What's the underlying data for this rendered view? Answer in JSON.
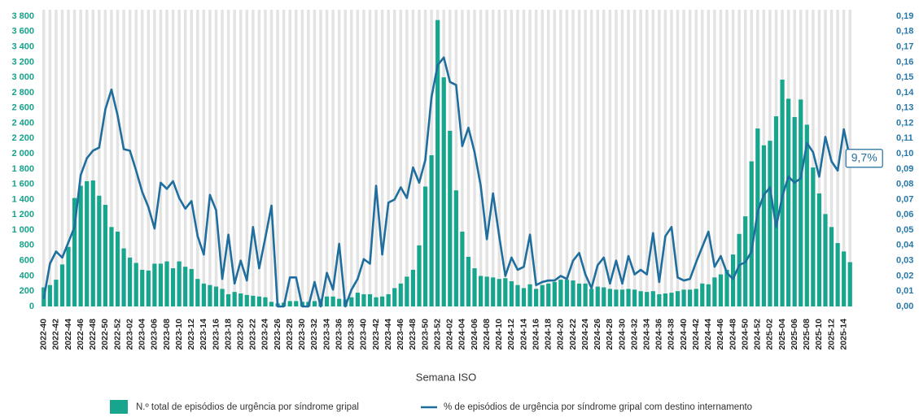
{
  "chart_data": {
    "type": "bar_line",
    "x_label": "Semana ISO",
    "categories": [
      "2022-40",
      null,
      "2022-42",
      null,
      "2022-44",
      null,
      "2022-46",
      null,
      "2022-48",
      null,
      "2022-50",
      null,
      "2022-52",
      null,
      "2023-02",
      null,
      "2023-04",
      null,
      "2023-06",
      null,
      "2023-08",
      null,
      "2023-10",
      null,
      "2023-12",
      null,
      "2023-14",
      null,
      "2023-16",
      null,
      "2023-18",
      null,
      "2023-20",
      null,
      "2023-22",
      null,
      "2023-24",
      null,
      "2023-26",
      null,
      "2023-28",
      null,
      "2023-30",
      null,
      "2023-32",
      null,
      "2023-34",
      null,
      "2023-36",
      null,
      "2023-38",
      null,
      "2023-40",
      null,
      "2023-42",
      null,
      "2023-44",
      null,
      "2023-46",
      null,
      "2023-48",
      null,
      "2023-50",
      null,
      "2023-52",
      null,
      "2024-02",
      null,
      "2024-04",
      null,
      "2024-06",
      null,
      "2024-08",
      null,
      "2024-10",
      null,
      "2024-12",
      null,
      "2024-14",
      null,
      "2024-16",
      null,
      "2024-18",
      null,
      "2024-20",
      null,
      "2024-22",
      null,
      "2024-24",
      null,
      "2024-26",
      null,
      "2024-28",
      null,
      "2024-30",
      null,
      "2024-32",
      null,
      "2024-34",
      null,
      "2024-36",
      null,
      "2024-38",
      null,
      "2024-40",
      null,
      "2024-42",
      null,
      "2024-44",
      null,
      "2024-46",
      null,
      "2024-48",
      null,
      "2024-50",
      null,
      "2024-52",
      null,
      "2025-02",
      null,
      "2025-04",
      null,
      "2025-06",
      null,
      "2025-08",
      null,
      "2025-10",
      null,
      "2025-12",
      null,
      "2025-14",
      null
    ],
    "series": [
      {
        "name": "N.º total de episódios de urgência por síndrome gripal",
        "type": "bar",
        "color": "#17a58e",
        "values": [
          250,
          280,
          350,
          550,
          780,
          1420,
          1580,
          1640,
          1650,
          1450,
          1330,
          1040,
          980,
          760,
          640,
          570,
          480,
          470,
          560,
          560,
          590,
          500,
          590,
          520,
          490,
          360,
          300,
          280,
          260,
          230,
          160,
          190,
          170,
          150,
          140,
          130,
          120,
          60,
          40,
          50,
          70,
          70,
          60,
          60,
          70,
          100,
          130,
          130,
          100,
          90,
          120,
          180,
          160,
          160,
          120,
          130,
          160,
          240,
          300,
          390,
          480,
          800,
          1570,
          1980,
          3750,
          3000,
          2300,
          1520,
          980,
          650,
          500,
          400,
          390,
          380,
          360,
          370,
          330,
          280,
          240,
          290,
          230,
          280,
          300,
          320,
          350,
          350,
          340,
          300,
          300,
          230,
          260,
          250,
          230,
          220,
          220,
          230,
          220,
          200,
          190,
          200,
          160,
          170,
          180,
          200,
          220,
          220,
          230,
          300,
          290,
          380,
          420,
          480,
          680,
          950,
          1180,
          1900,
          2330,
          2110,
          2170,
          2490,
          2970,
          2720,
          2480,
          2710,
          2380,
          1820,
          1480,
          1210,
          1040,
          830,
          720,
          580
        ]
      },
      {
        "name": "% de episódios de urgência por síndrome gripal com destino internamento",
        "type": "line",
        "axis": "y2",
        "color": "#1f6e9e",
        "values": [
          0.005,
          0.028,
          0.036,
          0.032,
          0.042,
          0.052,
          0.086,
          0.097,
          0.102,
          0.104,
          0.129,
          0.142,
          0.125,
          0.103,
          0.102,
          0.089,
          0.075,
          0.065,
          0.051,
          0.081,
          0.077,
          0.082,
          0.071,
          0.064,
          0.069,
          0.046,
          0.034,
          0.073,
          0.063,
          0.018,
          0.047,
          0.015,
          0.03,
          0.017,
          0.052,
          0.025,
          0.045,
          0.066,
          0.0,
          0.0,
          0.019,
          0.019,
          0.0,
          0.0,
          0.016,
          0.0,
          0.022,
          0.011,
          0.041,
          0.0,
          0.011,
          0.018,
          0.031,
          0.028,
          0.079,
          0.034,
          0.068,
          0.07,
          0.078,
          0.071,
          0.091,
          0.081,
          0.096,
          0.137,
          0.158,
          0.163,
          0.147,
          0.145,
          0.105,
          0.117,
          0.101,
          0.079,
          0.044,
          0.074,
          0.046,
          0.02,
          0.032,
          0.024,
          0.026,
          0.047,
          0.014,
          0.016,
          0.017,
          0.017,
          0.02,
          0.018,
          0.03,
          0.035,
          0.021,
          0.012,
          0.027,
          0.032,
          0.015,
          0.03,
          0.015,
          0.033,
          0.021,
          0.024,
          0.021,
          0.048,
          0.016,
          0.046,
          0.052,
          0.019,
          0.017,
          0.018,
          0.029,
          0.039,
          0.049,
          0.026,
          0.033,
          0.022,
          0.018,
          0.027,
          0.029,
          0.036,
          0.062,
          0.073,
          0.078,
          0.052,
          0.072,
          0.085,
          0.081,
          0.084,
          0.107,
          0.101,
          0.085,
          0.111,
          0.095,
          0.089,
          0.116,
          0.097
        ]
      }
    ],
    "annotation": "9,7%",
    "ylim": [
      0,
      3800
    ],
    "yticks": [
      0,
      200,
      400,
      600,
      800,
      {
        "value": 1000,
        "label": "1 000"
      },
      {
        "value": 1200,
        "label": "1 200"
      },
      {
        "value": 1400,
        "label": "1 400"
      },
      {
        "value": 1600,
        "label": "1 600"
      },
      {
        "value": 1800,
        "label": "1 800"
      },
      {
        "value": 2000,
        "label": "2 000"
      },
      {
        "value": 2200,
        "label": "2 200"
      },
      {
        "value": 2400,
        "label": "2 400"
      },
      {
        "value": 2600,
        "label": "2 600"
      },
      {
        "value": 2800,
        "label": "2 800"
      },
      {
        "value": 3000,
        "label": "3 000"
      },
      {
        "value": 3200,
        "label": "3 200"
      },
      {
        "value": 3400,
        "label": "3 400"
      },
      {
        "value": 3600,
        "label": "3 600"
      },
      {
        "value": 3800,
        "label": "3 800"
      }
    ],
    "y2lim": [
      0,
      0.19
    ],
    "y2ticks": [
      {
        "value": 0,
        "label": "0,00"
      },
      {
        "value": 0.01,
        "label": "0,01"
      },
      {
        "value": 0.02,
        "label": "0,02"
      },
      {
        "value": 0.03,
        "label": "0,03"
      },
      {
        "value": 0.04,
        "label": "0,04"
      },
      {
        "value": 0.05,
        "label": "0,05"
      },
      {
        "value": 0.06,
        "label": "0,06"
      },
      {
        "value": 0.07,
        "label": "0,07"
      },
      {
        "value": 0.08,
        "label": "0,08"
      },
      {
        "value": 0.09,
        "label": "0,09"
      },
      {
        "value": 0.1,
        "label": "0,10"
      },
      {
        "value": 0.11,
        "label": "0,11"
      },
      {
        "value": 0.12,
        "label": "0,12"
      },
      {
        "value": 0.13,
        "label": "0,13"
      },
      {
        "value": 0.14,
        "label": "0,14"
      },
      {
        "value": 0.15,
        "label": "0,15"
      },
      {
        "value": 0.16,
        "label": "0,16"
      },
      {
        "value": 0.17,
        "label": "0,17"
      },
      {
        "value": 0.18,
        "label": "0,18"
      },
      {
        "value": 0.19,
        "label": "0,19"
      }
    ],
    "legend": "bottom"
  }
}
